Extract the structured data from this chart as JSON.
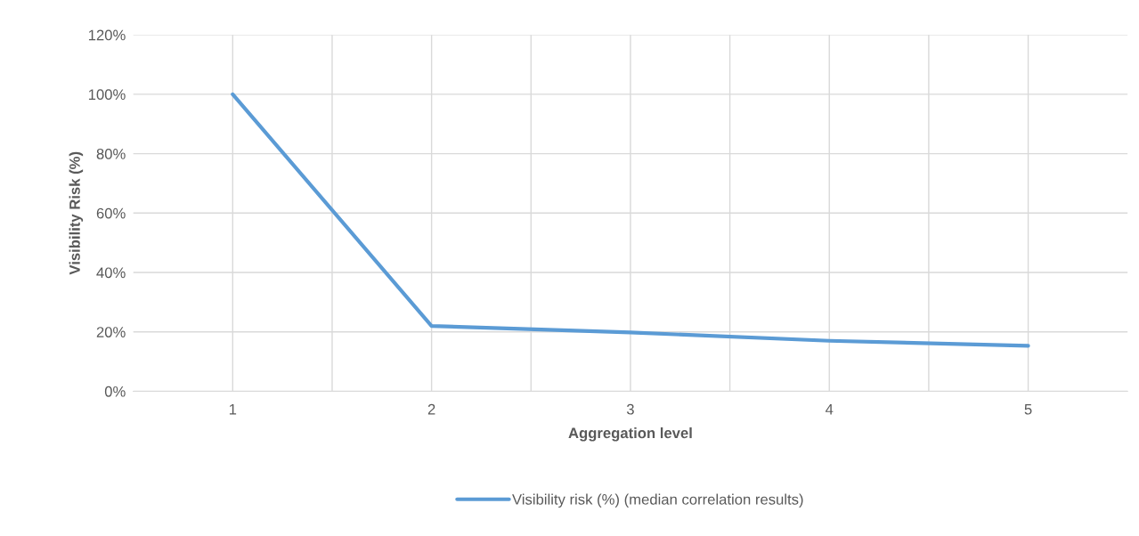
{
  "chart_data": {
    "type": "line",
    "xlabel": "Aggregation level",
    "ylabel": "Visibility Risk (%)",
    "categories": [
      "1",
      "2",
      "3",
      "4",
      "5"
    ],
    "series": [
      {
        "name": "Visibility risk (%) (median correlation results)",
        "color": "#5b9bd5",
        "values": [
          100,
          22,
          19.8,
          17,
          15.3
        ]
      }
    ],
    "ylim": [
      0,
      120
    ],
    "yticks": [
      {
        "value": 0,
        "label": "0%"
      },
      {
        "value": 20,
        "label": "20%"
      },
      {
        "value": 40,
        "label": "40%"
      },
      {
        "value": 60,
        "label": "60%"
      },
      {
        "value": 80,
        "label": "80%"
      },
      {
        "value": 100,
        "label": "100%"
      },
      {
        "value": 120,
        "label": "120%"
      }
    ],
    "grid": true,
    "legend": "bottom",
    "marker": "none",
    "line_style": "solid"
  }
}
